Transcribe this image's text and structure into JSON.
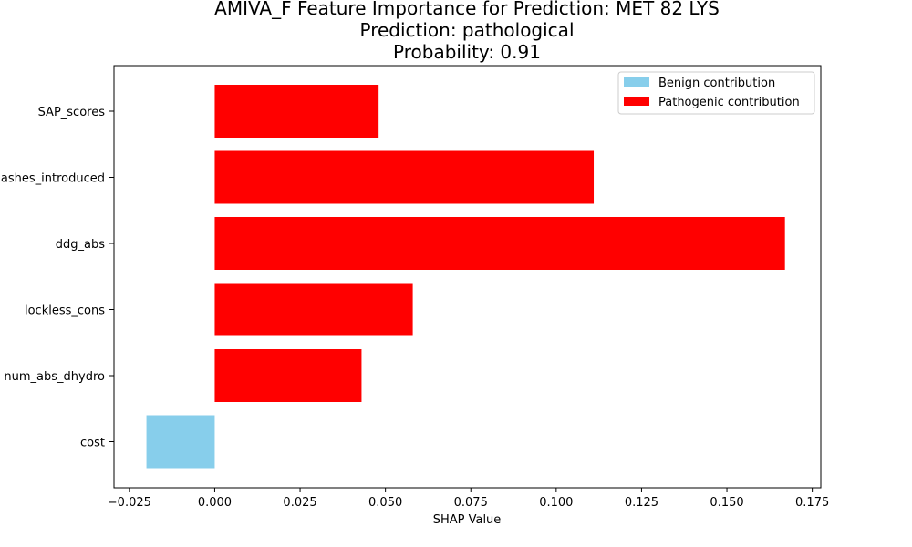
{
  "chart_data": {
    "type": "bar",
    "orientation": "horizontal",
    "title_lines": [
      "AMIVA_F Feature Importance for Prediction: MET 82 LYS",
      "Prediction: pathological",
      "Probability: 0.91"
    ],
    "xlabel": "SHAP Value",
    "ylabel": "",
    "xlim": [
      -0.0295,
      0.1775
    ],
    "xticks": [
      -0.025,
      0.0,
      0.025,
      0.05,
      0.075,
      0.1,
      0.125,
      0.15,
      0.175
    ],
    "xtick_labels": [
      "−0.025",
      "0.000",
      "0.025",
      "0.050",
      "0.075",
      "0.100",
      "0.125",
      "0.150",
      "0.175"
    ],
    "categories": [
      "SAP_scores",
      "ashes_introduced",
      "ddg_abs",
      "lockless_cons",
      "num_abs_dhydro",
      "cost"
    ],
    "values": [
      0.048,
      0.111,
      0.167,
      0.058,
      0.043,
      -0.02
    ],
    "colors": {
      "benign": "#87ceeb",
      "pathogenic": "#ff0000"
    },
    "legend": {
      "placement": "top-right",
      "entries": [
        {
          "label": "Benign contribution",
          "color": "#87ceeb"
        },
        {
          "label": "Pathogenic contribution",
          "color": "#ff0000"
        }
      ]
    },
    "grid": false
  }
}
